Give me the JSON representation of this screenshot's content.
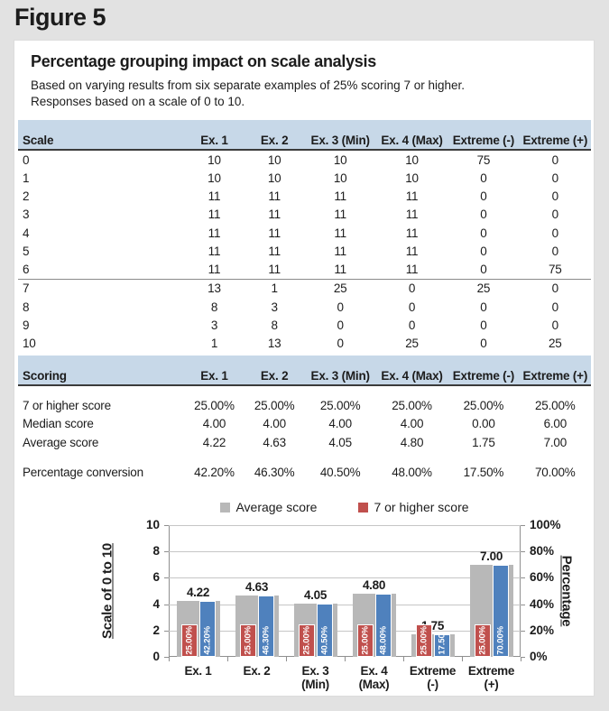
{
  "figure_label": "Figure 5",
  "panel": {
    "title": "Percentage grouping impact on scale analysis",
    "subtitle_line1": "Based on varying results from six separate examples of 25% scoring 7 or higher.",
    "subtitle_line2": "Responses based on a scale of 0 to 10."
  },
  "scale_table": {
    "headers": [
      "Scale",
      "Ex. 1",
      "Ex. 2",
      "Ex. 3 (Min)",
      "Ex. 4 (Max)",
      "Extreme (-)",
      "Extreme (+)"
    ],
    "rows": [
      [
        "0",
        "10",
        "10",
        "10",
        "10",
        "75",
        "0"
      ],
      [
        "1",
        "10",
        "10",
        "10",
        "10",
        "0",
        "0"
      ],
      [
        "2",
        "11",
        "11",
        "11",
        "11",
        "0",
        "0"
      ],
      [
        "3",
        "11",
        "11",
        "11",
        "11",
        "0",
        "0"
      ],
      [
        "4",
        "11",
        "11",
        "11",
        "11",
        "0",
        "0"
      ],
      [
        "5",
        "11",
        "11",
        "11",
        "11",
        "0",
        "0"
      ],
      [
        "6",
        "11",
        "11",
        "11",
        "11",
        "0",
        "75"
      ],
      [
        "7",
        "13",
        "1",
        "25",
        "0",
        "25",
        "0"
      ],
      [
        "8",
        "8",
        "3",
        "0",
        "0",
        "0",
        "0"
      ],
      [
        "9",
        "3",
        "8",
        "0",
        "0",
        "0",
        "0"
      ],
      [
        "10",
        "1",
        "13",
        "0",
        "25",
        "0",
        "25"
      ]
    ]
  },
  "scoring_table": {
    "headers": [
      "Scoring",
      "Ex. 1",
      "Ex. 2",
      "Ex. 3 (Min)",
      "Ex. 4 (Max)",
      "Extreme (-)",
      "Extreme (+)"
    ],
    "rows": [
      [
        "7 or higher score",
        "25.00%",
        "25.00%",
        "25.00%",
        "25.00%",
        "25.00%",
        "25.00%"
      ],
      [
        "Median score",
        "4.00",
        "4.00",
        "4.00",
        "4.00",
        "0.00",
        "6.00"
      ],
      [
        "Average score",
        "4.22",
        "4.63",
        "4.05",
        "4.80",
        "1.75",
        "7.00"
      ],
      [
        "Percentage conversion",
        "42.20%",
        "46.30%",
        "40.50%",
        "48.00%",
        "17.50%",
        "70.00%"
      ]
    ]
  },
  "chart_data": {
    "type": "bar",
    "categories": [
      "Ex. 1",
      "Ex. 2",
      "Ex. 3 (Min)",
      "Ex. 4 (Max)",
      "Extreme (-)",
      "Extreme (+)"
    ],
    "category_label_lines": [
      [
        "Ex. 1"
      ],
      [
        "Ex. 2"
      ],
      [
        "Ex. 3",
        "(Min)"
      ],
      [
        "Ex. 4",
        "(Max)"
      ],
      [
        "Extreme",
        "(-)"
      ],
      [
        "Extreme",
        "(+)"
      ]
    ],
    "series": [
      {
        "name": "Average score",
        "axis": "left",
        "color": "#b8b8b8",
        "values": [
          4.22,
          4.63,
          4.05,
          4.8,
          1.75,
          7.0
        ],
        "labels": [
          "4.22",
          "4.63",
          "4.05",
          "4.80",
          "1.75",
          "7.00"
        ]
      },
      {
        "name": "7 or higher score",
        "axis": "right",
        "color": "#c0504d",
        "values": [
          25,
          25,
          25,
          25,
          25,
          25
        ],
        "labels": [
          "25.00%",
          "25.00%",
          "25.00%",
          "25.00%",
          "25.00%",
          "25.00%"
        ]
      },
      {
        "name": "Percentage conversion",
        "axis": "right",
        "color": "#4f81bd",
        "values": [
          42.2,
          46.3,
          40.5,
          48.0,
          17.5,
          70.0
        ],
        "labels": [
          "42.20%",
          "46.30%",
          "40.50%",
          "48.00%",
          "17.50%",
          "70.00%"
        ]
      }
    ],
    "left_axis": {
      "title": "Scale of 0 to 10",
      "min": 0,
      "max": 10,
      "ticks": [
        "0",
        "2",
        "4",
        "6",
        "8",
        "10"
      ]
    },
    "right_axis": {
      "title": "Percentage",
      "min": 0,
      "max": 100,
      "ticks": [
        "0%",
        "20%",
        "40%",
        "60%",
        "80%",
        "100%"
      ]
    },
    "legend": [
      {
        "label": "Average score",
        "color": "#b8b8b8"
      },
      {
        "label": "7 or higher score",
        "color": "#c0504d"
      }
    ],
    "legend_position": "top",
    "grid": true
  }
}
